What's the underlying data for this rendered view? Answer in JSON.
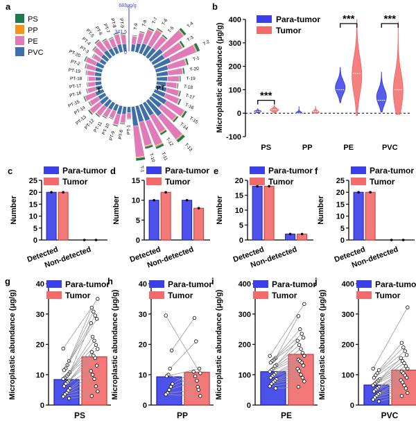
{
  "colors": {
    "para": "#3a3fe8",
    "tumor": "#f26a6a",
    "PS": "#1f7a4f",
    "PP": "#f2951a",
    "PE": "#e07bb8",
    "PVC": "#3f6fa8",
    "axis": "#000000",
    "link": "#9a9a9a"
  },
  "chart_data": [
    {
      "panel": "a",
      "type": "radial-stacked-bar",
      "legend": [
        "PS",
        "PP",
        "PE",
        "PVC"
      ],
      "scale_labels": [
        "683μg/g",
        "341.5",
        "0"
      ],
      "ymax": 683,
      "group_labels": [
        "T",
        "PT"
      ],
      "samples": [
        {
          "label": "T-9",
          "values": [
            8,
            4,
            82,
            75
          ]
        },
        {
          "label": "T-8",
          "values": [
            10,
            5,
            110,
            95
          ]
        },
        {
          "label": "T-7",
          "values": [
            15,
            6,
            150,
            110
          ]
        },
        {
          "label": "T-6",
          "values": [
            12,
            8,
            180,
            115
          ]
        },
        {
          "label": "T-5",
          "values": [
            14,
            6,
            150,
            120
          ]
        },
        {
          "label": "T-4",
          "values": [
            25,
            9,
            270,
            160
          ]
        },
        {
          "label": "T-3",
          "values": [
            20,
            8,
            210,
            140
          ]
        },
        {
          "label": "T-2",
          "values": [
            30,
            10,
            280,
            180
          ]
        },
        {
          "label": "T-1",
          "values": [
            18,
            8,
            190,
            130
          ]
        },
        {
          "label": "T-20",
          "values": [
            15,
            6,
            150,
            120
          ]
        },
        {
          "label": "T-19",
          "values": [
            12,
            5,
            120,
            110
          ]
        },
        {
          "label": "T-18",
          "values": [
            10,
            6,
            110,
            100
          ]
        },
        {
          "label": "T-17",
          "values": [
            14,
            5,
            130,
            115
          ]
        },
        {
          "label": "T-16",
          "values": [
            16,
            6,
            150,
            120
          ]
        },
        {
          "label": "T-15",
          "values": [
            22,
            7,
            210,
            160
          ]
        },
        {
          "label": "T-14",
          "values": [
            18,
            8,
            190,
            140
          ]
        },
        {
          "label": "T-13",
          "values": [
            30,
            10,
            300,
            200
          ]
        },
        {
          "label": "T-12",
          "values": [
            20,
            9,
            200,
            150
          ]
        },
        {
          "label": "T-11",
          "values": [
            25,
            12,
            270,
            180
          ]
        },
        {
          "label": "T-10",
          "values": [
            22,
            10,
            250,
            170
          ]
        },
        {
          "label": "T-1",
          "values": [
            28,
            10,
            320,
            200
          ]
        },
        {
          "label": "PT-1",
          "values": [
            6,
            4,
            60,
            60
          ]
        },
        {
          "label": "PT-8",
          "values": [
            10,
            4,
            90,
            80
          ]
        },
        {
          "label": "PT-9",
          "values": [
            12,
            5,
            110,
            90
          ]
        },
        {
          "label": "PT-10",
          "values": [
            8,
            4,
            80,
            70
          ]
        },
        {
          "label": "PT-11",
          "values": [
            10,
            4,
            90,
            80
          ]
        },
        {
          "label": "PT-12",
          "values": [
            12,
            5,
            110,
            85
          ]
        },
        {
          "label": "PT-13",
          "values": [
            14,
            6,
            130,
            95
          ]
        },
        {
          "label": "PT-14",
          "values": [
            10,
            5,
            100,
            80
          ]
        },
        {
          "label": "PT-15",
          "values": [
            12,
            5,
            110,
            90
          ]
        },
        {
          "label": "PT-16",
          "values": [
            9,
            4,
            85,
            70
          ]
        },
        {
          "label": "PT-17",
          "values": [
            8,
            4,
            75,
            65
          ]
        },
        {
          "label": "PT-18",
          "values": [
            7,
            3,
            70,
            60
          ]
        },
        {
          "label": "PT-19",
          "values": [
            9,
            4,
            80,
            70
          ]
        },
        {
          "label": "PT-2",
          "values": [
            10,
            4,
            95,
            75
          ]
        },
        {
          "label": "PT-20",
          "values": [
            12,
            5,
            110,
            85
          ]
        },
        {
          "label": "PT-3",
          "values": [
            8,
            4,
            80,
            65
          ]
        },
        {
          "label": "PT-4",
          "values": [
            10,
            5,
            100,
            80
          ]
        },
        {
          "label": "PT-5",
          "values": [
            12,
            5,
            120,
            90
          ]
        },
        {
          "label": "PT-6",
          "values": [
            10,
            4,
            100,
            80
          ]
        },
        {
          "label": "PT-7",
          "values": [
            9,
            4,
            90,
            75
          ]
        },
        {
          "label": "PT-8",
          "values": [
            11,
            5,
            105,
            85
          ]
        },
        {
          "label": "PT-9",
          "values": [
            10,
            4,
            95,
            80
          ]
        }
      ]
    },
    {
      "panel": "b",
      "type": "violin",
      "ylabel": "Microplastic abundance (μg/g)",
      "categories": [
        "PS",
        "PP",
        "PE",
        "PVC"
      ],
      "ylim": [
        -100,
        400
      ],
      "yticks": [
        -100,
        0,
        100,
        200,
        300,
        400
      ],
      "legend": [
        "Para-tumor",
        "Tumor"
      ],
      "significance": [
        "***",
        "",
        "***",
        "***"
      ],
      "series": [
        {
          "name": "Para-tumor",
          "color": "para",
          "min": [
            2,
            0,
            45,
            5
          ],
          "max": [
            19,
            29,
            195,
            175
          ],
          "median": [
            8,
            0,
            100,
            55
          ],
          "width": [
            0.5,
            0.45,
            0.7,
            0.7
          ],
          "mode": [
            8,
            0,
            110,
            70
          ]
        },
        {
          "name": "Tumor",
          "color": "tumor",
          "min": [
            2,
            0,
            -10,
            -5
          ],
          "max": [
            35,
            29,
            400,
            390
          ],
          "median": [
            15,
            8,
            170,
            100
          ],
          "width": [
            0.6,
            0.5,
            0.7,
            0.7
          ],
          "mode": [
            14,
            5,
            160,
            95
          ]
        }
      ]
    },
    {
      "panel": "c",
      "type": "bar",
      "ylabel": "Number",
      "categories": [
        "Detected",
        "Non-detected"
      ],
      "ylim": [
        0,
        25
      ],
      "yticks": [
        0,
        5,
        10,
        15,
        20,
        25
      ],
      "series": [
        {
          "name": "Para-tumor",
          "values": [
            20,
            0
          ]
        },
        {
          "name": "Tumor",
          "values": [
            20,
            0
          ]
        }
      ]
    },
    {
      "panel": "d",
      "type": "bar",
      "ylabel": "Number",
      "categories": [
        "Detected",
        "Non-detected"
      ],
      "ylim": [
        0,
        15
      ],
      "yticks": [
        0,
        5,
        10,
        15
      ],
      "series": [
        {
          "name": "Para-tumor",
          "values": [
            10,
            10
          ]
        },
        {
          "name": "Tumor",
          "values": [
            12,
            8
          ]
        }
      ]
    },
    {
      "panel": "e",
      "type": "bar",
      "ylabel": "Number",
      "categories": [
        "Detected",
        "Non-detected"
      ],
      "ylim": [
        0,
        20
      ],
      "yticks": [
        0,
        5,
        10,
        15,
        20
      ],
      "series": [
        {
          "name": "Para-tumor",
          "values": [
            18,
            2
          ]
        },
        {
          "name": "Tumor",
          "values": [
            18,
            2
          ]
        }
      ]
    },
    {
      "panel": "f",
      "type": "bar",
      "ylabel": "Number",
      "categories": [
        "Detected",
        "Non-detected"
      ],
      "ylim": [
        0,
        25
      ],
      "yticks": [
        0,
        5,
        10,
        15,
        20,
        25
      ],
      "series": [
        {
          "name": "Para-tumor",
          "values": [
            20,
            0
          ]
        },
        {
          "name": "Tumor",
          "values": [
            20,
            0
          ]
        }
      ]
    },
    {
      "panel": "g",
      "type": "paired-bar",
      "ylabel": "Microplastic abundance (μg/g)",
      "xlabel": "PS",
      "ylim": [
        0,
        40
      ],
      "yticks": [
        0,
        10,
        20,
        30,
        40
      ],
      "means": [
        8.4,
        15.9
      ],
      "pairs": [
        [
          18.6,
          35.0
        ],
        [
          14.5,
          32.1
        ],
        [
          13.2,
          30.8
        ],
        [
          12.1,
          29.5
        ],
        [
          11.5,
          28.4
        ],
        [
          10.8,
          27.0
        ],
        [
          10.1,
          22.5
        ],
        [
          9.5,
          21.2
        ],
        [
          9.0,
          19.8
        ],
        [
          8.6,
          18.5
        ],
        [
          8.0,
          17.5
        ],
        [
          7.5,
          16.3
        ],
        [
          7.0,
          15.5
        ],
        [
          6.2,
          13.0
        ],
        [
          5.5,
          11.2
        ],
        [
          4.8,
          10.0
        ],
        [
          4.0,
          8.6
        ],
        [
          3.5,
          6.2
        ],
        [
          2.8,
          4.5
        ],
        [
          2.2,
          3.0
        ]
      ]
    },
    {
      "panel": "h",
      "type": "paired-bar",
      "ylabel": "Microplastic abundance (μg/g)",
      "xlabel": "PP",
      "ylim": [
        0,
        40
      ],
      "yticks": [
        0,
        10,
        20,
        30,
        40
      ],
      "means": [
        9.3,
        10.8
      ],
      "pairs": [
        [
          29.5,
          10.5
        ],
        [
          18.0,
          28.7
        ],
        [
          12.0,
          21.0
        ],
        [
          10.0,
          6.0
        ],
        [
          9.5,
          12.0
        ],
        [
          7.0,
          11.0
        ],
        [
          6.0,
          9.5
        ],
        [
          5.0,
          8.0
        ],
        [
          4.0,
          5.0
        ],
        [
          3.5,
          3.0
        ]
      ]
    },
    {
      "panel": "i",
      "type": "paired-bar",
      "ylabel": "Microplastic abundance (μg/g)",
      "xlabel": "PE",
      "ylim": [
        0,
        400
      ],
      "yticks": [
        0,
        100,
        200,
        300,
        400
      ],
      "means": [
        110,
        167
      ],
      "pairs": [
        [
          162,
          333
        ],
        [
          155,
          293
        ],
        [
          150,
          250
        ],
        [
          145,
          235
        ],
        [
          140,
          222
        ],
        [
          132,
          212
        ],
        [
          128,
          198
        ],
        [
          120,
          185
        ],
        [
          115,
          172
        ],
        [
          110,
          162
        ],
        [
          105,
          150
        ],
        [
          100,
          145
        ],
        [
          95,
          140
        ],
        [
          90,
          130
        ],
        [
          85,
          120
        ],
        [
          80,
          112
        ],
        [
          75,
          100
        ],
        [
          70,
          90
        ],
        [
          62,
          78
        ],
        [
          55,
          60
        ]
      ]
    },
    {
      "panel": "j",
      "type": "paired-bar",
      "ylabel": "Microplastic abundance (μg/g)",
      "xlabel": "PVC",
      "ylim": [
        0,
        400
      ],
      "yticks": [
        0,
        100,
        200,
        300,
        400
      ],
      "means": [
        66,
        115
      ],
      "pairs": [
        [
          120,
          322
        ],
        [
          115,
          205
        ],
        [
          105,
          190
        ],
        [
          98,
          178
        ],
        [
          90,
          165
        ],
        [
          85,
          155
        ],
        [
          80,
          145
        ],
        [
          75,
          138
        ],
        [
          70,
          128
        ],
        [
          65,
          120
        ],
        [
          60,
          110
        ],
        [
          55,
          105
        ],
        [
          50,
          98
        ],
        [
          45,
          90
        ],
        [
          40,
          82
        ],
        [
          35,
          75
        ],
        [
          30,
          65
        ],
        [
          25,
          55
        ],
        [
          18,
          40
        ],
        [
          12,
          30
        ]
      ]
    }
  ],
  "panel_labels": [
    "a",
    "b",
    "c",
    "d",
    "e",
    "f",
    "g",
    "h",
    "i",
    "j"
  ]
}
